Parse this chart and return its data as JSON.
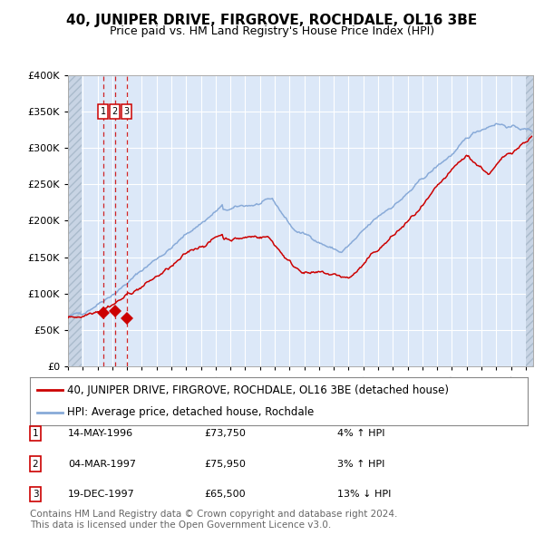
{
  "title": "40, JUNIPER DRIVE, FIRGROVE, ROCHDALE, OL16 3BE",
  "subtitle": "Price paid vs. HM Land Registry's House Price Index (HPI)",
  "legend_red": "40, JUNIPER DRIVE, FIRGROVE, ROCHDALE, OL16 3BE (detached house)",
  "legend_blue": "HPI: Average price, detached house, Rochdale",
  "footer1": "Contains HM Land Registry data © Crown copyright and database right 2024.",
  "footer2": "This data is licensed under the Open Government Licence v3.0.",
  "transactions": [
    {
      "num": 1,
      "date": "14-MAY-1996",
      "price": 73750,
      "year": 1996.37,
      "pct": "4%",
      "dir": "↑"
    },
    {
      "num": 2,
      "date": "04-MAR-1997",
      "price": 75950,
      "year": 1997.17,
      "pct": "3%",
      "dir": "↑"
    },
    {
      "num": 3,
      "date": "19-DEC-1997",
      "price": 65500,
      "year": 1997.97,
      "pct": "13%",
      "dir": "↓"
    }
  ],
  "ylim": [
    0,
    400000
  ],
  "yticks": [
    0,
    50000,
    100000,
    150000,
    200000,
    250000,
    300000,
    350000,
    400000
  ],
  "xlim_start": 1994.0,
  "xlim_end": 2025.5,
  "fig_bg": "#ffffff",
  "plot_bg": "#dce8f8",
  "hatch_color": "#c8d4e4",
  "grid_color": "#ffffff",
  "red_line_color": "#cc0000",
  "blue_line_color": "#88aad8",
  "vline_color": "#cc0000",
  "marker_color": "#cc0000",
  "box_color": "#cc0000",
  "title_fontsize": 11,
  "subtitle_fontsize": 9,
  "tick_fontsize": 8,
  "legend_fontsize": 8.5,
  "footer_fontsize": 7.5
}
